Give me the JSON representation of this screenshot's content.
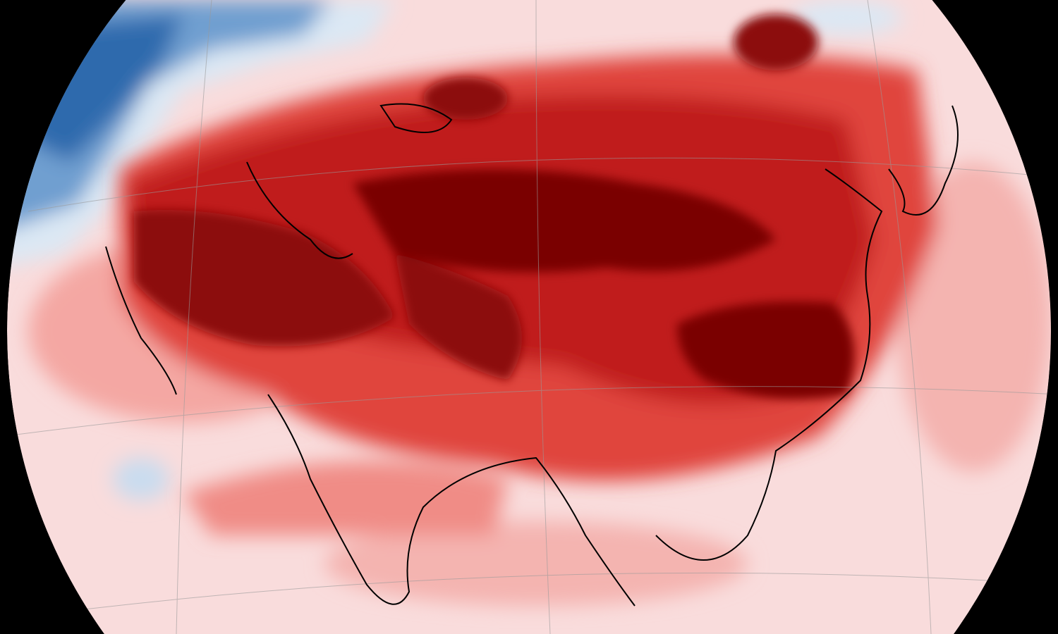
{
  "map": {
    "type": "temperature-anomaly-globe",
    "colors": {
      "background": "#000000",
      "ocean_base": "#f9dcdc",
      "warm_light": "#f4a7a3",
      "warm_mid": "#e0453c",
      "warm_strong": "#c01a1a",
      "warm_extreme": "#7a0006",
      "cool_light": "#dbe8f4",
      "cool_mid": "#6f9fd0",
      "cool_strong": "#2e6aad",
      "coastline": "#000000",
      "graticule": "#9a9a9a"
    }
  }
}
